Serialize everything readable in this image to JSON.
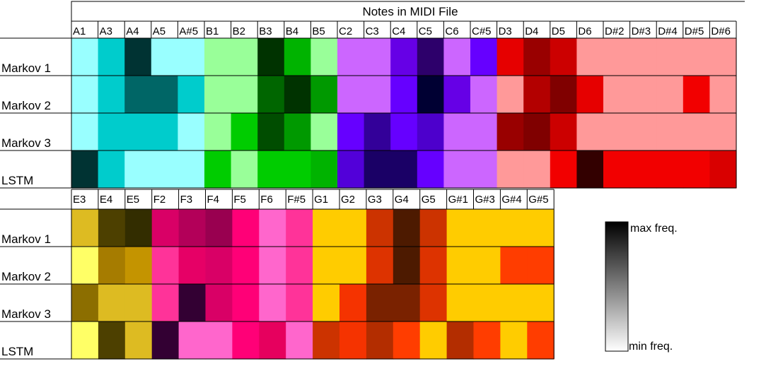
{
  "title": "Notes in MIDI File",
  "legend": {
    "max_label": "max freq.",
    "min_label": "min freq."
  },
  "chart_data": {
    "type": "heatmap",
    "title": "Notes in MIDI File",
    "rows": [
      "Markov 1",
      "Markov 2",
      "Markov 3",
      "LSTM"
    ],
    "color_scale": {
      "max_label": "max freq.",
      "min_label": "min freq.",
      "gradient": [
        "#000000",
        "#ffffff"
      ]
    },
    "panels": [
      {
        "columns": [
          "A1",
          "A3",
          "A4",
          "A5",
          "A#5",
          "B1",
          "B2",
          "B3",
          "B4",
          "B5",
          "C2",
          "C3",
          "C4",
          "C5",
          "C6",
          "C#5",
          "D3",
          "D4",
          "D5",
          "D6",
          "D#2",
          "D#3",
          "D#4",
          "D#5",
          "D#6"
        ],
        "colors": [
          [
            "#99ffff",
            "#00cccc",
            "#003333",
            "#99ffff",
            "#99ffff",
            "#99ff99",
            "#99ff99",
            "#003300",
            "#00b300",
            "#99ff99",
            "#cc66ff",
            "#cc66ff",
            "#6600e6",
            "#2d006b",
            "#cc66ff",
            "#6600ff",
            "#e60000",
            "#990000",
            "#cc0000",
            "#ff9999",
            "#ff9999",
            "#ff9999",
            "#ff9999",
            "#ff9999",
            "#ff9999"
          ],
          [
            "#99ffff",
            "#00cccc",
            "#006666",
            "#006666",
            "#00cccc",
            "#99ff99",
            "#99ff99",
            "#006600",
            "#003300",
            "#009900",
            "#cc66ff",
            "#cc66ff",
            "#6600ff",
            "#000033",
            "#6600e6",
            "#cc66ff",
            "#ff9999",
            "#b30000",
            "#800000",
            "#e60000",
            "#ff9999",
            "#ff9999",
            "#ff9999",
            "#f20000",
            "#ff9999"
          ],
          [
            "#99ffff",
            "#00cccc",
            "#00cccc",
            "#00cccc",
            "#99ffff",
            "#99ff99",
            "#00cc00",
            "#004d00",
            "#009900",
            "#99ff99",
            "#6600ff",
            "#330099",
            "#6600ff",
            "#4d00cc",
            "#cc66ff",
            "#cc66ff",
            "#990000",
            "#800000",
            "#cc0000",
            "#ff9999",
            "#ff9999",
            "#ff9999",
            "#ff9999",
            "#ff9999",
            "#ff9999"
          ],
          [
            "#003333",
            "#00cccc",
            "#99ffff",
            "#99ffff",
            "#99ffff",
            "#00cc00",
            "#99ff99",
            "#00cc00",
            "#00cc00",
            "#00b300",
            "#5200d9",
            "#1a0066",
            "#1a0066",
            "#6600ff",
            "#cc66ff",
            "#cc66ff",
            "#ff9999",
            "#ff9999",
            "#f20000",
            "#330000",
            "#f20000",
            "#f20000",
            "#f20000",
            "#f20000",
            "#d90000"
          ]
        ]
      },
      {
        "columns": [
          "E3",
          "E4",
          "E5",
          "F2",
          "F3",
          "F4",
          "F5",
          "F6",
          "F#5",
          "G1",
          "G2",
          "G3",
          "G4",
          "G5",
          "G#1",
          "G#3",
          "G#4",
          "G#5"
        ],
        "colors": [
          [
            "#ddbb22",
            "#4d4000",
            "#332d00",
            "#d90066",
            "#b30059",
            "#990050",
            "#ff0077",
            "#ff66cc",
            "#ff3399",
            "#ffcc00",
            "#ffcc00",
            "#cc3300",
            "#4d1a00",
            "#cc3300",
            "#ffcc00",
            "#ffcc00",
            "#ffcc00",
            "#ffcc00"
          ],
          [
            "#ffff66",
            "#a67c00",
            "#c49400",
            "#ff3399",
            "#e60066",
            "#d90066",
            "#ff0077",
            "#ff66cc",
            "#ff3399",
            "#ffcc00",
            "#ffcc00",
            "#dd3300",
            "#4d1a00",
            "#dd3300",
            "#ffcc00",
            "#ffcc00",
            "#ff3d00",
            "#ff3d00"
          ],
          [
            "#8c6e00",
            "#ddbb22",
            "#ddbb22",
            "#ff3399",
            "#330033",
            "#d90066",
            "#ff0077",
            "#ff66cc",
            "#ff3399",
            "#ffcc00",
            "#f53300",
            "#7a2200",
            "#7a2200",
            "#dd3300",
            "#ffcc00",
            "#ffcc00",
            "#ffcc00",
            "#ffcc00"
          ],
          [
            "#ffff66",
            "#4d4000",
            "#ddbb22",
            "#330033",
            "#ff66cc",
            "#ff66cc",
            "#ff0077",
            "#e6005e",
            "#ff66cc",
            "#cc3300",
            "#f53300",
            "#b32d00",
            "#ff3d00",
            "#ffcc00",
            "#b32d00",
            "#ff3d00",
            "#ffcc00",
            "#ff3d00"
          ]
        ]
      }
    ]
  }
}
